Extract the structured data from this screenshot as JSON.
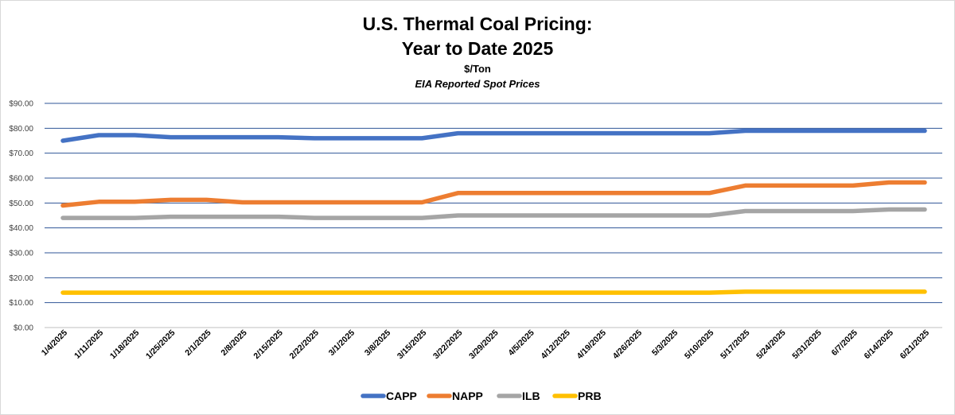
{
  "chart_data": {
    "type": "line",
    "title": "U.S. Thermal Coal Pricing:",
    "title_line2": "Year to Date 2025",
    "subtitle": "$/Ton",
    "subtitle2": "EIA Reported Spot Prices",
    "xlabel": "",
    "ylabel": "",
    "ylim": [
      0,
      90
    ],
    "y_ticks": [
      "$0.00",
      "$10.00",
      "$20.00",
      "$30.00",
      "$40.00",
      "$50.00",
      "$60.00",
      "$70.00",
      "$80.00",
      "$90.00"
    ],
    "grid": true,
    "legend": "bottom",
    "categories": [
      "1/4/2025",
      "1/11/2025",
      "1/18/2025",
      "1/25/2025",
      "2/1/2025",
      "2/8/2025",
      "2/15/2025",
      "2/22/2025",
      "3/1/2025",
      "3/8/2025",
      "3/15/2025",
      "3/22/2025",
      "3/29/2025",
      "4/5/2025",
      "4/12/2025",
      "4/19/2025",
      "4/26/2025",
      "5/3/2025",
      "5/10/2025",
      "5/17/2025",
      "5/24/2025",
      "5/31/2025",
      "6/7/2025",
      "6/14/2025",
      "6/21/2025"
    ],
    "series": [
      {
        "name": "CAPP",
        "color": "#4472C4",
        "values": [
          75,
          77.25,
          77.25,
          76.4,
          76.4,
          76.4,
          76.4,
          76,
          76,
          76,
          76,
          78,
          78,
          78,
          78,
          78,
          78,
          78,
          78,
          79,
          79,
          79,
          79,
          79,
          79
        ]
      },
      {
        "name": "NAPP",
        "color": "#ED7D31",
        "values": [
          49,
          50.5,
          50.5,
          51.25,
          51.25,
          50.25,
          50.25,
          50.25,
          50.25,
          50.25,
          50.25,
          54,
          54,
          54,
          54,
          54,
          54,
          54,
          54,
          57,
          57,
          57,
          57,
          58.25,
          58.25
        ]
      },
      {
        "name": "ILB",
        "color": "#A5A5A5",
        "values": [
          44,
          44,
          44,
          44.5,
          44.5,
          44.5,
          44.5,
          44,
          44,
          44,
          44,
          45,
          45,
          45,
          45,
          45,
          45,
          45,
          45,
          46.75,
          46.75,
          46.75,
          46.75,
          47.4,
          47.4
        ]
      },
      {
        "name": "PRB",
        "color": "#FFC000",
        "values": [
          14,
          14,
          14,
          14,
          14,
          14,
          14,
          14,
          14,
          14,
          14,
          14,
          14,
          14,
          14,
          14,
          14,
          14,
          14,
          14.4,
          14.4,
          14.4,
          14.4,
          14.4,
          14.4
        ]
      }
    ]
  }
}
